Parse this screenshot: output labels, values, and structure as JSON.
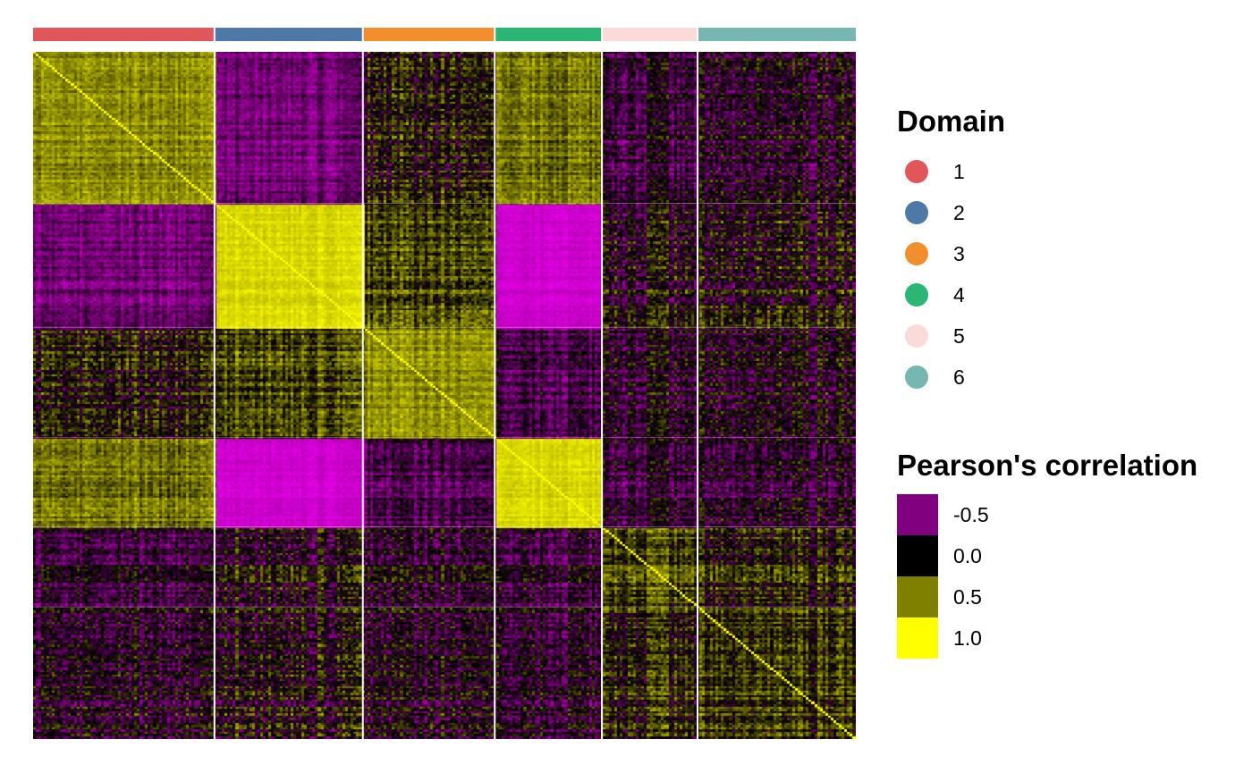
{
  "chart_data": {
    "type": "heatmap",
    "title": "",
    "xlabel": "",
    "ylabel": "",
    "domains": [
      "1",
      "2",
      "3",
      "4",
      "5",
      "6"
    ],
    "domain_colors": [
      "#E15759",
      "#4E79A7",
      "#F28E2B",
      "#2BB673",
      "#FADBDA",
      "#76B7B2"
    ],
    "domain_weights": [
      11,
      9,
      8,
      6.5,
      5.8,
      9.6
    ],
    "block_mean_correlation": [
      [
        0.55,
        -0.45,
        0.05,
        0.45,
        -0.2,
        -0.1
      ],
      [
        -0.45,
        0.85,
        0.25,
        -0.85,
        -0.05,
        0.0
      ],
      [
        0.05,
        0.25,
        0.55,
        -0.3,
        -0.15,
        -0.1
      ],
      [
        0.45,
        -0.85,
        -0.3,
        0.85,
        -0.2,
        -0.15
      ],
      [
        -0.2,
        -0.05,
        -0.15,
        -0.2,
        0.25,
        0.1
      ],
      [
        -0.1,
        0.0,
        -0.1,
        -0.15,
        0.1,
        0.2
      ]
    ],
    "color_scale": {
      "min": -0.5,
      "mid": 0.0,
      "max": 1.0
    }
  },
  "legend": {
    "domain_title": "Domain",
    "domain_items": [
      {
        "label": "1",
        "color": "#E15759"
      },
      {
        "label": "2",
        "color": "#4E79A7"
      },
      {
        "label": "3",
        "color": "#F28E2B"
      },
      {
        "label": "4",
        "color": "#2BB673"
      },
      {
        "label": "5",
        "color": "#FADBDA"
      },
      {
        "label": "6",
        "color": "#76B7B2"
      }
    ],
    "scale_title": "Pearson's correlation",
    "scale_items": [
      {
        "label": "-0.5",
        "color": "#800080"
      },
      {
        "label": "0.0",
        "color": "#000000"
      },
      {
        "label": "0.5",
        "color": "#808000"
      },
      {
        "label": "1.0",
        "color": "#FFFF00"
      }
    ]
  }
}
